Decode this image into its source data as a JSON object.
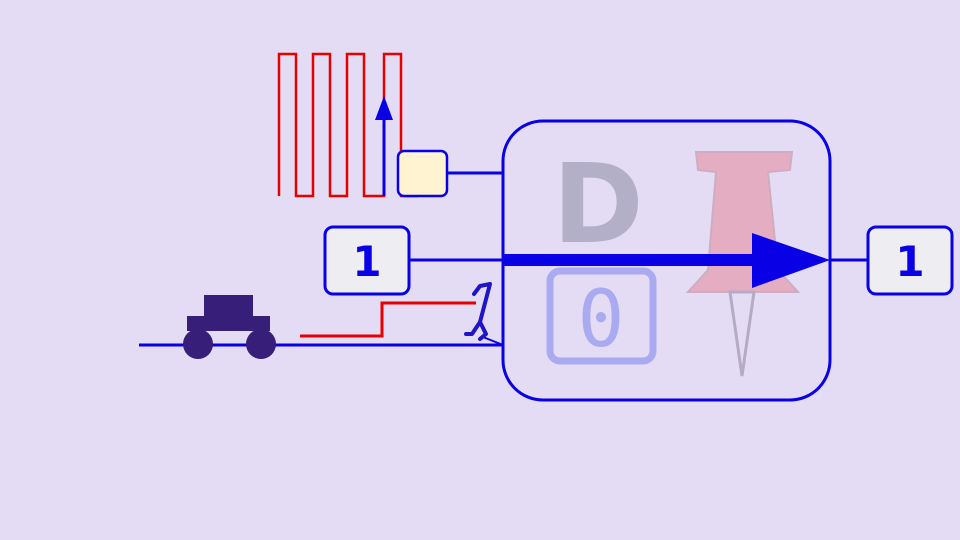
{
  "input_value": "1",
  "output_value": "1",
  "latch": {
    "letter": "D",
    "stored_value": "0"
  },
  "colors": {
    "background": "#e4dcf4",
    "wire": "#0a00e6",
    "clock_signal": "#e60000",
    "latch_border": "#0a00e6",
    "value_box_fill": "#eeeef2",
    "clock_port_fill": "#fff3d2",
    "pin_color": "#e6a0b4",
    "faded_letter": "#b4afc8",
    "faded_value": "#aaaaf0",
    "pushbutton": "#371e78"
  },
  "icons": [
    "clock-square-wave-icon",
    "pushbutton-icon",
    "step-signal-icon",
    "pushpin-icon",
    "arrow-icon"
  ]
}
